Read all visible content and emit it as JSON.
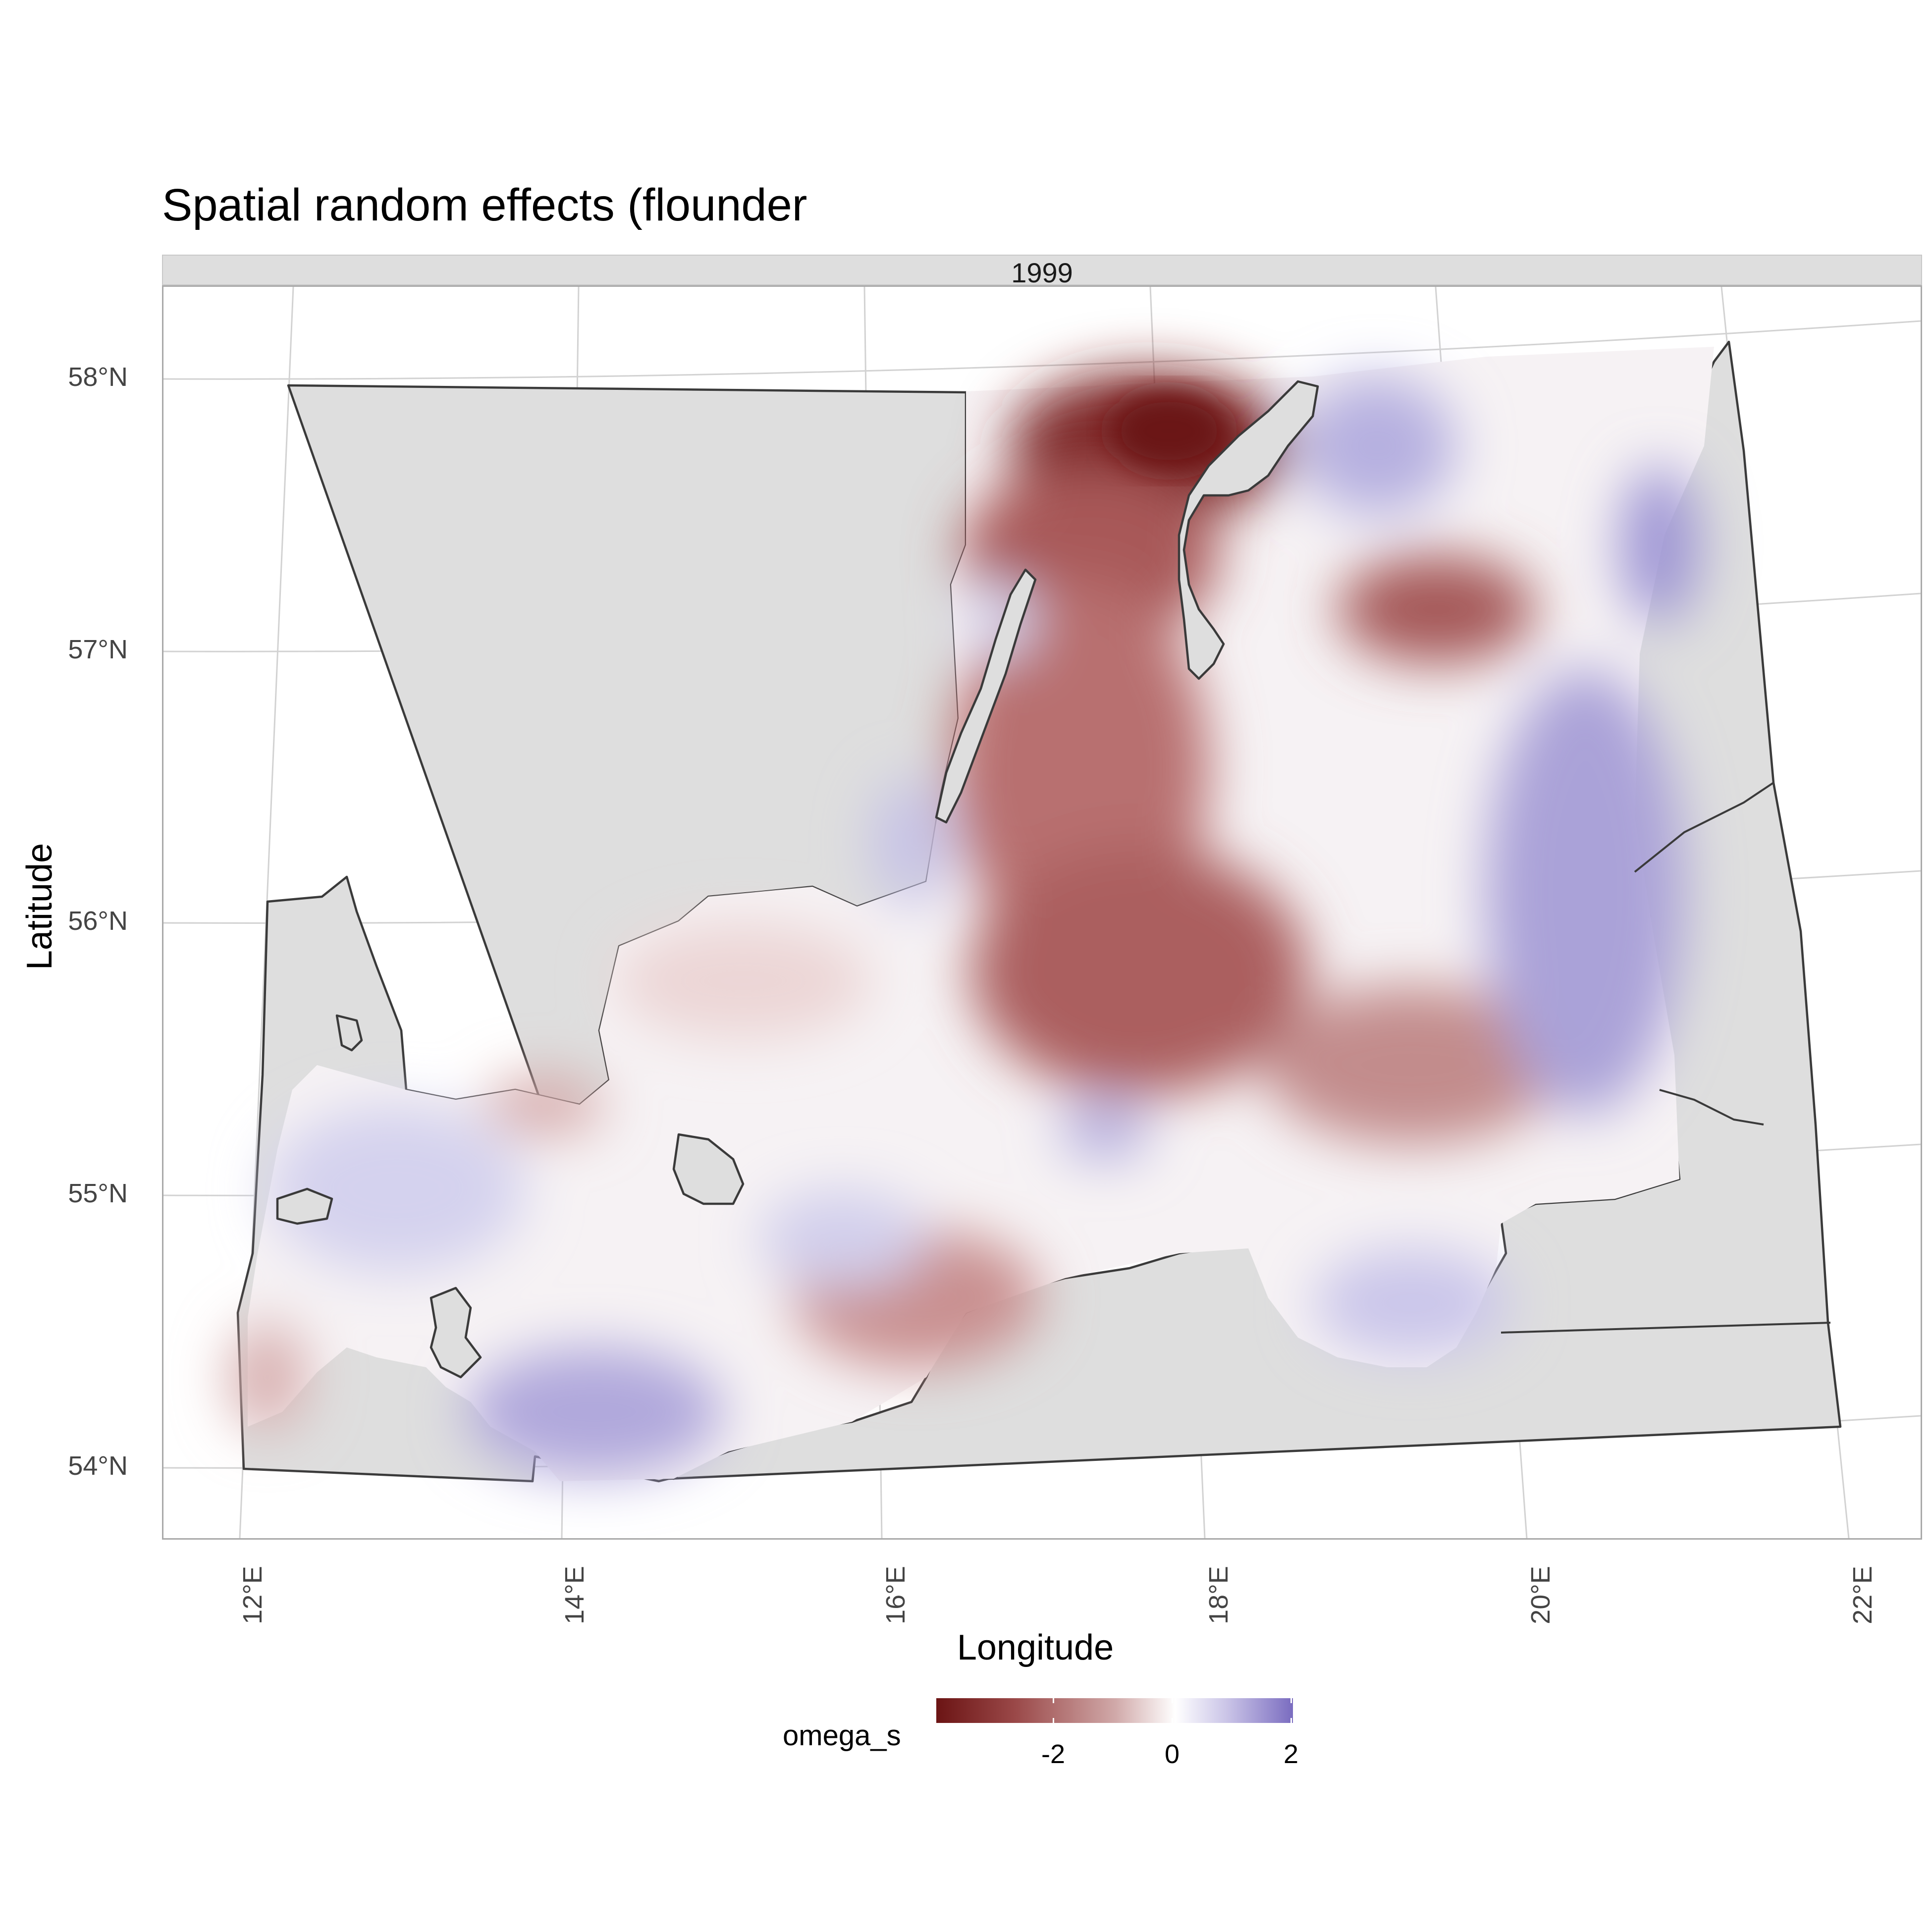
{
  "title": "Spatial random effects (flounder",
  "facet": "1999",
  "x_axis": {
    "label": "Longitude",
    "ticks": [
      "12°E",
      "14°E",
      "16°E",
      "18°E",
      "20°E",
      "22°E"
    ]
  },
  "y_axis": {
    "label": "Latitude",
    "ticks": [
      "58°N",
      "57°N",
      "56°N",
      "55°N",
      "54°N"
    ]
  },
  "legend": {
    "title": "omega_s",
    "ticks": [
      "-2",
      "0",
      "2"
    ],
    "low_color": "#6b1414",
    "mid_color": "#ffffff",
    "high_color": "#7a6cc0"
  },
  "land_color": "#dedede",
  "coast_color": "#3a3a3a",
  "grid_color": "#d2d2d2"
}
